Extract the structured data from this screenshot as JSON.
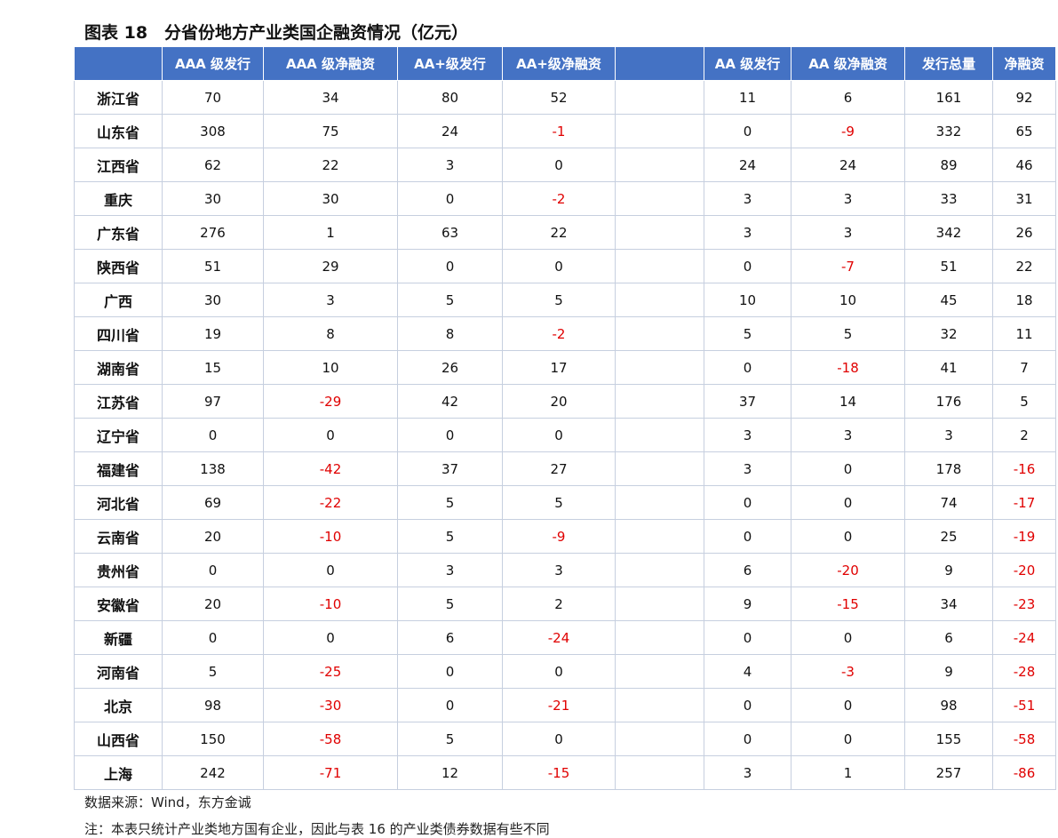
{
  "title": "图表 18　分省份地方产业类国企融资情况（亿元）",
  "colors": {
    "header_bg": "#4472c4",
    "negative": "#e00000"
  },
  "columns": [
    "",
    "AAA 级发行",
    "AAA 级净融资",
    "AA+级发行",
    "AA+级净融资",
    "",
    "AA 级发行",
    "AA 级净融资",
    "发行总量",
    "净融资"
  ],
  "rows": [
    [
      "浙江省",
      "70",
      "34",
      "80",
      "52",
      "",
      "11",
      "6",
      "161",
      "92"
    ],
    [
      "山东省",
      "308",
      "75",
      "24",
      "-1",
      "",
      "0",
      "-9",
      "332",
      "65"
    ],
    [
      "江西省",
      "62",
      "22",
      "3",
      "0",
      "",
      "24",
      "24",
      "89",
      "46"
    ],
    [
      "重庆",
      "30",
      "30",
      "0",
      "-2",
      "",
      "3",
      "3",
      "33",
      "31"
    ],
    [
      "广东省",
      "276",
      "1",
      "63",
      "22",
      "",
      "3",
      "3",
      "342",
      "26"
    ],
    [
      "陕西省",
      "51",
      "29",
      "0",
      "0",
      "",
      "0",
      "-7",
      "51",
      "22"
    ],
    [
      "广西",
      "30",
      "3",
      "5",
      "5",
      "",
      "10",
      "10",
      "45",
      "18"
    ],
    [
      "四川省",
      "19",
      "8",
      "8",
      "-2",
      "",
      "5",
      "5",
      "32",
      "11"
    ],
    [
      "湖南省",
      "15",
      "10",
      "26",
      "17",
      "",
      "0",
      "-18",
      "41",
      "7"
    ],
    [
      "江苏省",
      "97",
      "-29",
      "42",
      "20",
      "",
      "37",
      "14",
      "176",
      "5"
    ],
    [
      "辽宁省",
      "0",
      "0",
      "0",
      "0",
      "",
      "3",
      "3",
      "3",
      "2"
    ],
    [
      "福建省",
      "138",
      "-42",
      "37",
      "27",
      "",
      "3",
      "0",
      "178",
      "-16"
    ],
    [
      "河北省",
      "69",
      "-22",
      "5",
      "5",
      "",
      "0",
      "0",
      "74",
      "-17"
    ],
    [
      "云南省",
      "20",
      "-10",
      "5",
      "-9",
      "",
      "0",
      "0",
      "25",
      "-19"
    ],
    [
      "贵州省",
      "0",
      "0",
      "3",
      "3",
      "",
      "6",
      "-20",
      "9",
      "-20"
    ],
    [
      "安徽省",
      "20",
      "-10",
      "5",
      "2",
      "",
      "9",
      "-15",
      "34",
      "-23"
    ],
    [
      "新疆",
      "0",
      "0",
      "6",
      "-24",
      "",
      "0",
      "0",
      "6",
      "-24"
    ],
    [
      "河南省",
      "5",
      "-25",
      "0",
      "0",
      "",
      "4",
      "-3",
      "9",
      "-28"
    ],
    [
      "北京",
      "98",
      "-30",
      "0",
      "-21",
      "",
      "0",
      "0",
      "98",
      "-51"
    ],
    [
      "山西省",
      "150",
      "-58",
      "5",
      "0",
      "",
      "0",
      "0",
      "155",
      "-58"
    ],
    [
      "上海",
      "242",
      "-71",
      "12",
      "-15",
      "",
      "3",
      "1",
      "257",
      "-86"
    ]
  ],
  "source": "数据来源：Wind，东方金诚",
  "note": "注：本表只统计产业类地方国有企业，因此与表 16 的产业类债券数据有些不同"
}
